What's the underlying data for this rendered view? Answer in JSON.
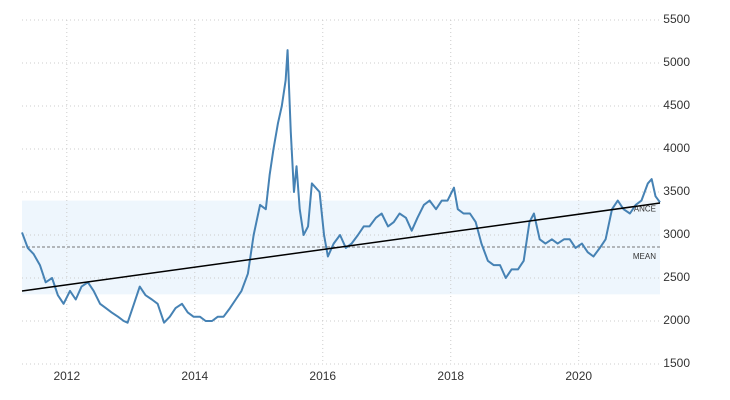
{
  "chart_data": {
    "type": "line",
    "xlim": [
      2011.3,
      2021.27
    ],
    "ylim": [
      1500,
      5500
    ],
    "xticks": [
      2012,
      2014,
      2016,
      2018,
      2020
    ],
    "yticks": [
      1500,
      2000,
      2500,
      3000,
      3500,
      4000,
      4500,
      5000,
      5500
    ],
    "grid": true,
    "band": {
      "label": "ANCE",
      "upper": 3400,
      "lower": 2310,
      "color": "#eef6fd"
    },
    "mean": {
      "label": "MEAN",
      "value": 2860,
      "color": "#777777"
    },
    "trend": {
      "x": [
        2011.3,
        2021.27
      ],
      "values": [
        2349,
        3372
      ],
      "color": "#000000"
    },
    "series": [
      {
        "color": "#4682b4",
        "x": [
          2011.3,
          2011.39,
          2011.48,
          2011.58,
          2011.67,
          2011.77,
          2011.86,
          2011.95,
          2012.05,
          2012.14,
          2012.23,
          2012.33,
          2012.42,
          2012.52,
          2012.61,
          2012.7,
          2012.8,
          2012.89,
          2012.95,
          2013.05,
          2013.14,
          2013.23,
          2013.33,
          2013.42,
          2013.52,
          2013.61,
          2013.7,
          2013.8,
          2013.89,
          2013.98,
          2014.08,
          2014.17,
          2014.27,
          2014.36,
          2014.45,
          2014.55,
          2014.64,
          2014.73,
          2014.83,
          2014.92,
          2015.02,
          2015.11,
          2015.17,
          2015.23,
          2015.3,
          2015.36,
          2015.42,
          2015.45,
          2015.5,
          2015.55,
          2015.59,
          2015.64,
          2015.7,
          2015.77,
          2015.83,
          2015.89,
          2015.95,
          2016.02,
          2016.08,
          2016.17,
          2016.27,
          2016.36,
          2016.45,
          2016.55,
          2016.64,
          2016.73,
          2016.83,
          2016.92,
          2017.02,
          2017.11,
          2017.2,
          2017.3,
          2017.39,
          2017.48,
          2017.58,
          2017.67,
          2017.77,
          2017.86,
          2017.95,
          2018.05,
          2018.11,
          2018.2,
          2018.3,
          2018.39,
          2018.48,
          2018.58,
          2018.67,
          2018.77,
          2018.86,
          2018.95,
          2019.05,
          2019.14,
          2019.23,
          2019.3,
          2019.39,
          2019.48,
          2019.58,
          2019.67,
          2019.77,
          2019.86,
          2019.95,
          2020.05,
          2020.14,
          2020.23,
          2020.33,
          2020.42,
          2020.52,
          2020.61,
          2020.7,
          2020.8,
          2020.89,
          2020.98,
          2021.08,
          2021.14,
          2021.2,
          2021.27
        ],
        "values": [
          3030,
          2850,
          2780,
          2650,
          2450,
          2500,
          2300,
          2200,
          2350,
          2250,
          2400,
          2450,
          2350,
          2200,
          2150,
          2100,
          2050,
          2000,
          1980,
          2200,
          2400,
          2300,
          2250,
          2200,
          1980,
          2050,
          2150,
          2200,
          2100,
          2050,
          2050,
          2000,
          2000,
          2050,
          2050,
          2150,
          2250,
          2350,
          2550,
          3000,
          3350,
          3300,
          3700,
          4000,
          4300,
          4500,
          4800,
          5150,
          4200,
          3500,
          3800,
          3300,
          3000,
          3100,
          3600,
          3550,
          3500,
          3000,
          2750,
          2900,
          3000,
          2850,
          2900,
          3000,
          3100,
          3100,
          3200,
          3250,
          3100,
          3150,
          3250,
          3200,
          3050,
          3200,
          3350,
          3400,
          3300,
          3400,
          3400,
          3550,
          3300,
          3250,
          3250,
          3150,
          2900,
          2700,
          2650,
          2650,
          2500,
          2600,
          2600,
          2700,
          3150,
          3250,
          2950,
          2900,
          2950,
          2900,
          2950,
          2950,
          2850,
          2900,
          2800,
          2750,
          2850,
          2950,
          3300,
          3400,
          3300,
          3250,
          3350,
          3400,
          3600,
          3650,
          3450,
          3380
        ]
      }
    ]
  }
}
